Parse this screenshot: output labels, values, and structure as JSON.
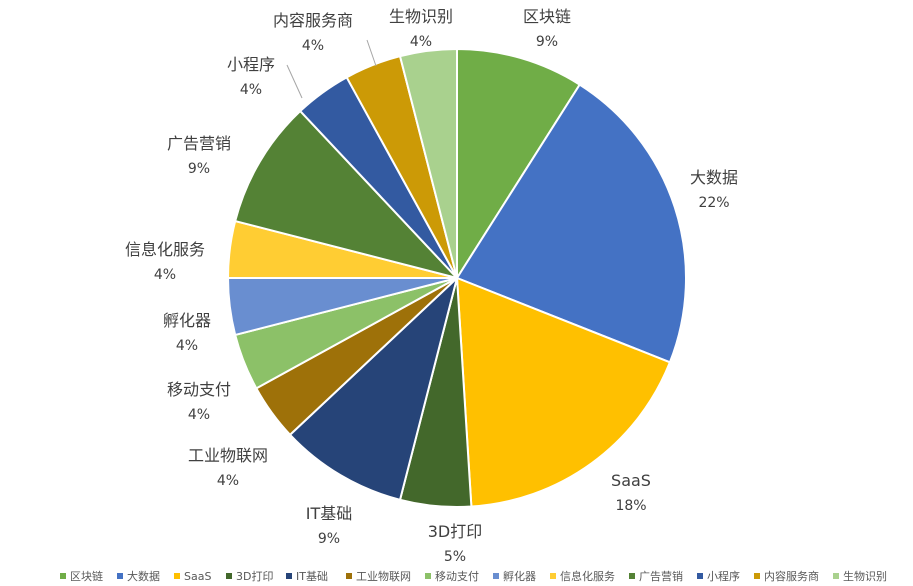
{
  "chart_data": {
    "type": "pie",
    "title": "",
    "legend_position": "bottom",
    "slices": [
      {
        "label": "区块链",
        "value_label": "9%",
        "value": 9,
        "color": "#70AD47"
      },
      {
        "label": "大数据",
        "value_label": "22%",
        "value": 22,
        "color": "#4472C4"
      },
      {
        "label": "SaaS",
        "value_label": "18%",
        "value": 18,
        "color": "#FFC000"
      },
      {
        "label": "3D打印",
        "value_label": "5%",
        "value": 5,
        "color": "#43682B"
      },
      {
        "label": "IT基础",
        "value_label": "9%",
        "value": 9,
        "color": "#264478"
      },
      {
        "label": "工业物联网",
        "value_label": "4%",
        "value": 4,
        "color": "#9E7109"
      },
      {
        "label": "移动支付",
        "value_label": "4%",
        "value": 4,
        "color": "#8CC168"
      },
      {
        "label": "孵化器",
        "value_label": "4%",
        "value": 4,
        "color": "#698ED0"
      },
      {
        "label": "信息化服务",
        "value_label": "4%",
        "value": 4,
        "color": "#FFCD33"
      },
      {
        "label": "广告营销",
        "value_label": "9%",
        "value": 9,
        "color": "#548235"
      },
      {
        "label": "小程序",
        "value_label": "4%",
        "value": 4,
        "color": "#335AA1"
      },
      {
        "label": "内容服务商",
        "value_label": "4%",
        "value": 4,
        "color": "#CC9A06"
      },
      {
        "label": "生物识别",
        "value_label": "4%",
        "value": 4,
        "color": "#A9D18E"
      }
    ]
  }
}
